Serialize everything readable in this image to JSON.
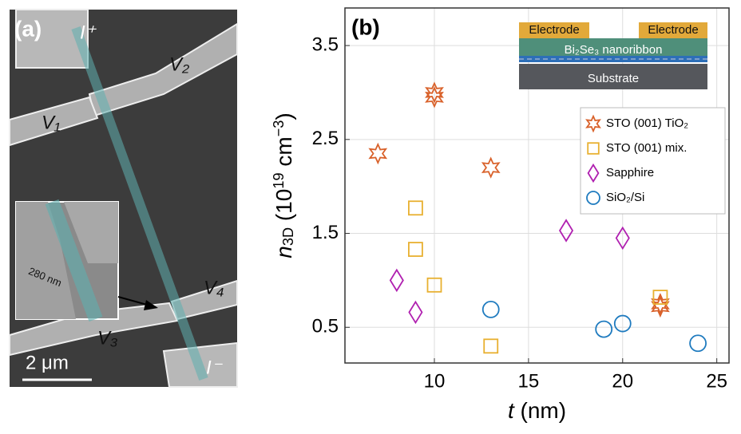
{
  "panel_a": {
    "label": "(a)",
    "texts": [
      "I⁺",
      "V₂",
      "V₁",
      "V₄",
      "V₃",
      "I⁻"
    ],
    "inset_scale": "280 nm",
    "scale_bar": "2 μm"
  },
  "inset": {
    "electrodes": [
      "Electrode",
      "Electrode"
    ],
    "ribbon": "Bi₂Se₃ nanoribbon",
    "substrate": "Substrate"
  },
  "chart_data": {
    "type": "scatter",
    "panel_label": "(b)",
    "xlabel": [
      {
        "text": "t",
        "italic": true
      },
      {
        "text": " (nm)"
      }
    ],
    "ylabel": [
      {
        "text": "n",
        "italic": true
      },
      {
        "text": "3D",
        "shift": "sub"
      },
      {
        "text": " (10"
      },
      {
        "text": "19",
        "shift": "sup"
      },
      {
        "text": " cm"
      },
      {
        "text": "−3",
        "shift": "sup"
      },
      {
        "text": ")"
      }
    ],
    "xlim": [
      5.25,
      25.65
    ],
    "ylim": [
      0.12,
      3.9
    ],
    "xticks": [
      10,
      15,
      20,
      25
    ],
    "yticks": [
      0.5,
      1.5,
      2.5,
      3.5
    ],
    "grid": true,
    "legend": "upper right",
    "series": [
      {
        "name": "STO (001) TiO₂",
        "marker": "star",
        "color": "#d9622b",
        "x": [
          7,
          10,
          10,
          13,
          22,
          22
        ],
        "values": [
          2.35,
          3.0,
          2.95,
          2.2,
          0.75,
          0.72
        ]
      },
      {
        "name": "STO (001) mix.",
        "marker": "square",
        "color": "#e8b030",
        "x": [
          9,
          9,
          10,
          13,
          22
        ],
        "values": [
          1.77,
          1.33,
          0.95,
          0.3,
          0.82
        ]
      },
      {
        "name": "Sapphire",
        "marker": "diamond",
        "color": "#b020b0",
        "x": [
          8,
          9,
          17,
          20
        ],
        "values": [
          1.0,
          0.66,
          1.53,
          1.45
        ]
      },
      {
        "name": "SiO₂/Si",
        "marker": "circle",
        "color": "#1f7bbf",
        "x": [
          13,
          19,
          20,
          24
        ],
        "values": [
          0.69,
          0.48,
          0.54,
          0.33
        ]
      }
    ]
  }
}
